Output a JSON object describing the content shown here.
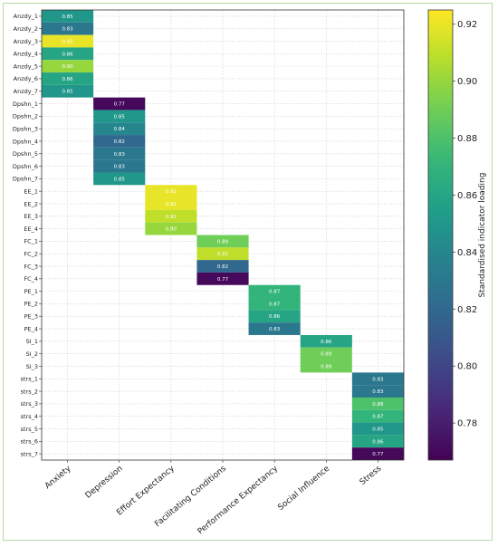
{
  "chart_data": {
    "type": "heatmap",
    "rows": [
      "Anzdy_1",
      "Anzdy_2",
      "Anzdy_3",
      "Anzdy_4",
      "Anzdy_5",
      "Anzdy_6",
      "Anzdy_7",
      "Dpshn_1",
      "Dpshn_2",
      "Dpshn_3",
      "Dpshn_4",
      "Dpshn_5",
      "Dpshn_6",
      "Dpshn_7",
      "EE_1",
      "EE_2",
      "EE_3",
      "EE_4",
      "FC_1",
      "FC_2",
      "FC_3",
      "FC_4",
      "PE_1",
      "PE_2",
      "PE_3",
      "PE_4",
      "SI_1",
      "SI_2",
      "SI_3",
      "strs_1",
      "strs_2",
      "strs_3",
      "strs_4",
      "strs_5",
      "strs_6",
      "strs_7"
    ],
    "columns": [
      "Anxiety",
      "Depression",
      "Effort Expectancy",
      "Facilitating Conditions",
      "Performance Expectancy",
      "Social Influence",
      "Stress"
    ],
    "cells": [
      {
        "row": 0,
        "col": 0,
        "value": 0.85,
        "label": "0.85"
      },
      {
        "row": 1,
        "col": 0,
        "value": 0.83,
        "label": "0.83"
      },
      {
        "row": 2,
        "col": 0,
        "value": 0.92,
        "label": "0.92"
      },
      {
        "row": 3,
        "col": 0,
        "value": 0.86,
        "label": "0.86"
      },
      {
        "row": 4,
        "col": 0,
        "value": 0.9,
        "label": "0.90"
      },
      {
        "row": 5,
        "col": 0,
        "value": 0.86,
        "label": "0.86"
      },
      {
        "row": 6,
        "col": 0,
        "value": 0.85,
        "label": "0.85"
      },
      {
        "row": 7,
        "col": 1,
        "value": 0.77,
        "label": "0.77"
      },
      {
        "row": 8,
        "col": 1,
        "value": 0.85,
        "label": "0.85"
      },
      {
        "row": 9,
        "col": 1,
        "value": 0.84,
        "label": "0.84"
      },
      {
        "row": 10,
        "col": 1,
        "value": 0.82,
        "label": "0.82"
      },
      {
        "row": 11,
        "col": 1,
        "value": 0.83,
        "label": "0.83"
      },
      {
        "row": 12,
        "col": 1,
        "value": 0.83,
        "label": "0.83"
      },
      {
        "row": 13,
        "col": 1,
        "value": 0.85,
        "label": "0.85"
      },
      {
        "row": 14,
        "col": 2,
        "value": 0.92,
        "label": "0.92"
      },
      {
        "row": 15,
        "col": 2,
        "value": 0.92,
        "label": "0.92"
      },
      {
        "row": 16,
        "col": 2,
        "value": 0.91,
        "label": "0.91"
      },
      {
        "row": 17,
        "col": 2,
        "value": 0.9,
        "label": "0.90"
      },
      {
        "row": 18,
        "col": 3,
        "value": 0.89,
        "label": "0.89"
      },
      {
        "row": 19,
        "col": 3,
        "value": 0.91,
        "label": "0.91"
      },
      {
        "row": 20,
        "col": 3,
        "value": 0.82,
        "label": "0.82"
      },
      {
        "row": 21,
        "col": 3,
        "value": 0.77,
        "label": "0.77"
      },
      {
        "row": 22,
        "col": 4,
        "value": 0.87,
        "label": "0.87"
      },
      {
        "row": 23,
        "col": 4,
        "value": 0.87,
        "label": "0.87"
      },
      {
        "row": 24,
        "col": 4,
        "value": 0.86,
        "label": "0.86"
      },
      {
        "row": 25,
        "col": 4,
        "value": 0.83,
        "label": "0.83"
      },
      {
        "row": 26,
        "col": 5,
        "value": 0.86,
        "label": "0.86"
      },
      {
        "row": 27,
        "col": 5,
        "value": 0.89,
        "label": "0.89"
      },
      {
        "row": 28,
        "col": 5,
        "value": 0.89,
        "label": "0.89"
      },
      {
        "row": 29,
        "col": 6,
        "value": 0.83,
        "label": "0.83"
      },
      {
        "row": 30,
        "col": 6,
        "value": 0.83,
        "label": "0.83"
      },
      {
        "row": 31,
        "col": 6,
        "value": 0.88,
        "label": "0.88"
      },
      {
        "row": 32,
        "col": 6,
        "value": 0.87,
        "label": "0.87"
      },
      {
        "row": 33,
        "col": 6,
        "value": 0.85,
        "label": "0.85"
      },
      {
        "row": 34,
        "col": 6,
        "value": 0.86,
        "label": "0.86"
      },
      {
        "row": 35,
        "col": 6,
        "value": 0.77,
        "label": "0.77"
      }
    ],
    "colormap": "viridis",
    "vmin": 0.767,
    "vmax": 0.925,
    "colorbar": {
      "label": "Standardised indicator loading",
      "ticks": [
        0.78,
        0.8,
        0.82,
        0.84,
        0.86,
        0.88,
        0.9,
        0.92
      ],
      "tick_labels": [
        "0.78",
        "0.80",
        "0.82",
        "0.84",
        "0.86",
        "0.88",
        "0.90",
        "0.92"
      ]
    },
    "grid": true
  }
}
